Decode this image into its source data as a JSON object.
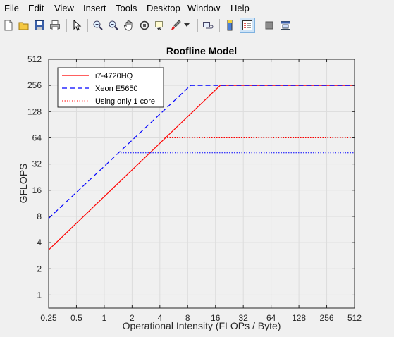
{
  "menu": [
    "File",
    "Edit",
    "View",
    "Insert",
    "Tools",
    "Desktop",
    "Window",
    "Help"
  ],
  "toolbar": [
    {
      "icon": "new-figure-icon"
    },
    {
      "icon": "open-file-icon"
    },
    {
      "icon": "save-icon"
    },
    {
      "icon": "print-icon"
    },
    {
      "icon": "edit-plot-arrow-icon"
    },
    {
      "icon": "zoom-in-icon"
    },
    {
      "icon": "zoom-out-icon"
    },
    {
      "icon": "pan-hand-icon"
    },
    {
      "icon": "rotate-3d-icon"
    },
    {
      "icon": "data-cursor-icon"
    },
    {
      "icon": "brush-icon"
    },
    {
      "icon": "brush-dropdown-icon"
    },
    {
      "icon": "link-plot-icon"
    },
    {
      "icon": "insert-colorbar-icon"
    },
    {
      "icon": "insert-legend-icon"
    },
    {
      "icon": "hide-plot-tools-icon"
    },
    {
      "icon": "show-plot-tools-icon"
    }
  ],
  "chart_data": {
    "type": "line",
    "title": "Roofline Model",
    "xlabel": "Operational Intensity (FLOPs / Byte)",
    "ylabel": "GFLOPS",
    "xscale": "log2",
    "yscale": "log2",
    "xlim": [
      0.25,
      512
    ],
    "ylim": [
      0.7071,
      512
    ],
    "xticks": [
      0.25,
      0.5,
      1,
      2,
      4,
      8,
      16,
      32,
      64,
      128,
      256,
      512
    ],
    "xtick_labels": [
      "0.25",
      "0.5",
      "1",
      "2",
      "4",
      "8",
      "16",
      "32",
      "64",
      "128",
      "256",
      "512"
    ],
    "yticks": [
      1,
      2,
      4,
      8,
      16,
      32,
      64,
      128,
      256,
      512
    ],
    "ytick_labels": [
      "1",
      "2",
      "4",
      "8",
      "16",
      "32",
      "64",
      "128",
      "256",
      "512"
    ],
    "grid": true,
    "legend_position": "top-left",
    "series": [
      {
        "name": "i7-4720HQ",
        "color": "#ff0000",
        "style": "solid",
        "x": [
          0.25,
          18,
          512
        ],
        "y": [
          3.3,
          256,
          256
        ]
      },
      {
        "name": "Xeon E5650",
        "color": "#0000ff",
        "style": "dashed",
        "x": [
          0.25,
          8.6,
          512
        ],
        "y": [
          7.6,
          256,
          256
        ]
      },
      {
        "name": "Using only 1 core",
        "color": "#ff0000",
        "style": "dotted",
        "x": [
          4.5,
          512
        ],
        "y": [
          64,
          64
        ]
      },
      {
        "name": "",
        "color": "#0000ff",
        "style": "dotted",
        "x": [
          1.5,
          512
        ],
        "y": [
          43,
          43
        ]
      }
    ]
  }
}
